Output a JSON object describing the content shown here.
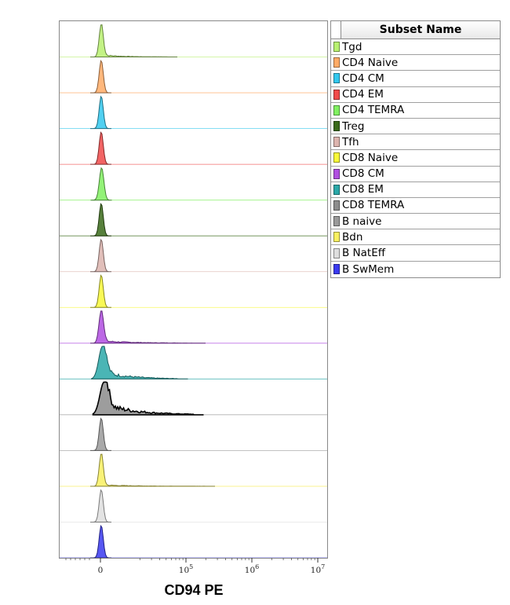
{
  "chart_data": {
    "type": "histogram-overlay",
    "xlabel": "CD94 PE",
    "x_ticks": [
      {
        "value": 0,
        "label": "0"
      },
      {
        "value": 100000,
        "base": "10",
        "exp": "5"
      },
      {
        "value": 1000000,
        "base": "10",
        "exp": "6"
      },
      {
        "value": 10000000,
        "base": "10",
        "exp": "7"
      }
    ],
    "legend_title": "Subset Name",
    "series": [
      {
        "name": "Tgd",
        "color": "#b8f070",
        "peak": 0.1,
        "width": 1.0,
        "tail": 0.06,
        "tail_len": 0.7
      },
      {
        "name": "CD4 Naive",
        "color": "#ffab66",
        "peak": 0.1,
        "width": 1.0,
        "tail": 0.0,
        "tail_len": 0.0
      },
      {
        "name": "CD4 CM",
        "color": "#33c8ee",
        "peak": 0.1,
        "width": 1.0,
        "tail": 0.0,
        "tail_len": 0.0
      },
      {
        "name": "CD4 EM",
        "color": "#f04a4a",
        "peak": 0.1,
        "width": 1.0,
        "tail": 0.0,
        "tail_len": 0.0
      },
      {
        "name": "CD4 TEMRA",
        "color": "#80f060",
        "peak": 0.15,
        "width": 1.1,
        "tail": 0.0,
        "tail_len": 0.0
      },
      {
        "name": "Treg",
        "color": "#3a6a1a",
        "peak": 0.1,
        "width": 1.0,
        "tail": 0.0,
        "tail_len": 0.0
      },
      {
        "name": "Tfh",
        "color": "#dcb4ae",
        "peak": 0.1,
        "width": 1.0,
        "tail": 0.0,
        "tail_len": 0.0
      },
      {
        "name": "CD8 Naive",
        "color": "#f8f838",
        "peak": 0.1,
        "width": 1.0,
        "tail": 0.0,
        "tail_len": 0.0
      },
      {
        "name": "CD8 CM",
        "color": "#b04ee0",
        "peak": 0.1,
        "width": 1.1,
        "tail": 0.07,
        "tail_len": 1.0
      },
      {
        "name": "CD8 EM",
        "color": "#2aa8a8",
        "peak": 0.25,
        "width": 1.8,
        "tail": 0.22,
        "tail_len": 0.8
      },
      {
        "name": "CD8 TEMRA",
        "color": "#8c8c8c",
        "peak": 0.45,
        "width": 2.0,
        "tail": 0.32,
        "tail_len": 0.95
      },
      {
        "name": "B naive",
        "color": "#9a9a9a",
        "peak": 0.1,
        "width": 1.0,
        "tail": 0.0,
        "tail_len": 0.0
      },
      {
        "name": "Bdn",
        "color": "#f8f060",
        "peak": 0.1,
        "width": 1.0,
        "tail": 0.04,
        "tail_len": 1.1
      },
      {
        "name": "B NatEff",
        "color": "#dedede",
        "peak": 0.1,
        "width": 1.0,
        "tail": 0.0,
        "tail_len": 0.0
      },
      {
        "name": "B SwMem",
        "color": "#3a3af0",
        "peak": 0.1,
        "width": 1.0,
        "tail": 0.0,
        "tail_len": 0.0
      }
    ]
  }
}
